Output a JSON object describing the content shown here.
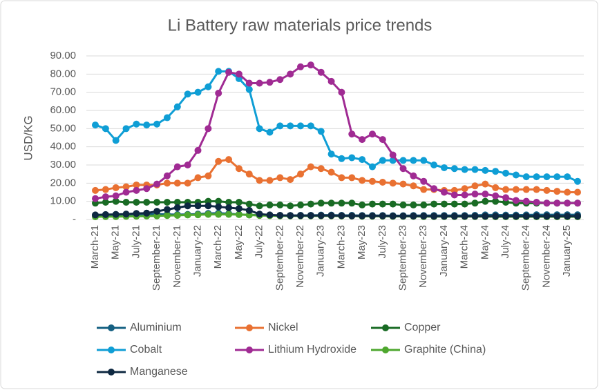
{
  "chart_data": {
    "type": "line",
    "title": "Li Battery raw materials price trends",
    "ylabel": "USD/KG",
    "categories": [
      "March-21",
      null,
      "May-21",
      null,
      "July-21",
      null,
      "September-21",
      null,
      "November-21",
      null,
      "January-22",
      null,
      "March-22",
      null,
      "May-22",
      null,
      "July-22",
      null,
      "September-22",
      null,
      "November-22",
      null,
      "January-23",
      null,
      "March-23",
      null,
      "May-23",
      null,
      "July-23",
      null,
      "September-23",
      null,
      "November-23",
      null,
      "January-24",
      null,
      "March-24",
      null,
      "May-24",
      null,
      "July-24",
      null,
      "September-24",
      null,
      "November-24",
      null,
      "January-25",
      null
    ],
    "ylim": [
      0,
      90
    ],
    "yticks": [
      {
        "value": 0,
        "label": "-"
      },
      {
        "value": 10,
        "label": "10.00"
      },
      {
        "value": 20,
        "label": "20.00"
      },
      {
        "value": 30,
        "label": "30.00"
      },
      {
        "value": 40,
        "label": "40.00"
      },
      {
        "value": 50,
        "label": "50.00"
      },
      {
        "value": 60,
        "label": "60.00"
      },
      {
        "value": 70,
        "label": "70.00"
      },
      {
        "value": 80,
        "label": "80.00"
      },
      {
        "value": 90,
        "label": "90.00"
      }
    ],
    "grid": true,
    "legend": "bottom",
    "series": [
      {
        "name": "Aluminium",
        "color": "#156082",
        "values": [
          2.3,
          2.4,
          2.5,
          2.5,
          2.6,
          2.8,
          3,
          2.8,
          2.7,
          2.8,
          3,
          3.3,
          3.5,
          3.2,
          2.8,
          2.5,
          2.4,
          2.4,
          2.2,
          2.2,
          2.3,
          2.3,
          2.4,
          2.4,
          2.3,
          2.3,
          2.2,
          2.2,
          2.2,
          2.1,
          2.1,
          2.2,
          2.2,
          2.2,
          2.2,
          2.2,
          2.2,
          2.3,
          2.5,
          2.5,
          2.4,
          2.4,
          2.5,
          2.6,
          2.6,
          2.6,
          2.6,
          2.6
        ]
      },
      {
        "name": "Nickel",
        "color": "#e97132",
        "values": [
          16,
          16.5,
          17.5,
          18,
          19,
          19,
          19,
          20,
          20,
          20,
          23,
          24,
          32,
          33,
          28,
          25,
          21.5,
          21.5,
          23,
          22,
          25,
          29,
          28,
          26,
          23,
          23,
          21.5,
          21,
          20.5,
          20,
          19.5,
          18.5,
          16.5,
          16.5,
          16,
          16,
          17,
          18.5,
          19.5,
          17.5,
          16.5,
          16.5,
          16.5,
          16.5,
          16,
          15.5,
          15,
          15
        ]
      },
      {
        "name": "Copper",
        "color": "#196b24",
        "values": [
          9,
          9.5,
          10,
          9.5,
          9.5,
          9.5,
          9.5,
          9.5,
          9.5,
          9.5,
          9.5,
          10,
          10,
          9.5,
          9.5,
          8.5,
          7.5,
          8,
          8,
          7.5,
          8,
          8.5,
          9,
          9,
          9,
          9,
          8,
          8.5,
          8.5,
          8.5,
          8,
          8,
          8,
          8.5,
          8.5,
          8.5,
          8.5,
          9,
          10,
          10,
          9.5,
          9,
          9,
          9,
          9,
          9,
          9,
          9
        ]
      },
      {
        "name": "Cobalt",
        "color": "#0f9ed5",
        "values": [
          52,
          50,
          43.5,
          50,
          52.5,
          52,
          52.5,
          56,
          62,
          69,
          70,
          73,
          81.5,
          81.5,
          77.5,
          71.5,
          50,
          48,
          51.5,
          51.5,
          51.5,
          51.5,
          48.5,
          36,
          33.5,
          34,
          33,
          29,
          32.5,
          32.5,
          32.5,
          32.5,
          32.5,
          30,
          28.5,
          28,
          27.5,
          27.5,
          27,
          26.5,
          25.5,
          24.5,
          23.5,
          23.5,
          23.5,
          23.5,
          23.5,
          21
        ]
      },
      {
        "name": "Lithium Hydroxide",
        "color": "#a02b93",
        "values": [
          11.5,
          12.5,
          13,
          15,
          16,
          17,
          19.5,
          24,
          29,
          30,
          38,
          50,
          69.5,
          81,
          80,
          75,
          75,
          75.5,
          77,
          80,
          84,
          85,
          81,
          76,
          70,
          47,
          44,
          47,
          44,
          35.5,
          28,
          24,
          21,
          17,
          15,
          13.5,
          13.5,
          14,
          14,
          13,
          12,
          10.5,
          10,
          9.5,
          9,
          9,
          9,
          9
        ]
      },
      {
        "name": "Graphite (China)",
        "color": "#4ea72e",
        "values": [
          1.5,
          1.6,
          1.6,
          1.7,
          1.8,
          1.9,
          2,
          2.2,
          2.3,
          2.5,
          2.6,
          2.8,
          2.8,
          2.8,
          2.7,
          2.5,
          2.2,
          2.1,
          2,
          2,
          2,
          2,
          2,
          2,
          1.9,
          1.9,
          1.8,
          1.8,
          1.8,
          1.7,
          1.7,
          1.7,
          1.6,
          1.6,
          1.6,
          1.6,
          1.6,
          1.6,
          1.6,
          1.5,
          1.5,
          1.5,
          1.5,
          1.5,
          1.5,
          1.5,
          1.5,
          1.5
        ]
      },
      {
        "name": "Manganese",
        "color": "#0e2841",
        "values": [
          2.5,
          2.7,
          2.8,
          3,
          3.3,
          3.5,
          4.5,
          5.5,
          6.5,
          7.5,
          7.5,
          7.5,
          7,
          6.5,
          6,
          5,
          3,
          2.5,
          2.3,
          2.2,
          2.2,
          2.2,
          2.2,
          2.2,
          2.1,
          2,
          2,
          2,
          2,
          1.9,
          1.9,
          1.9,
          1.9,
          1.8,
          1.8,
          1.8,
          1.8,
          1.8,
          1.8,
          1.8,
          1.8,
          1.8,
          1.8,
          1.8,
          1.8,
          1.8,
          1.8,
          1.8
        ]
      }
    ]
  }
}
